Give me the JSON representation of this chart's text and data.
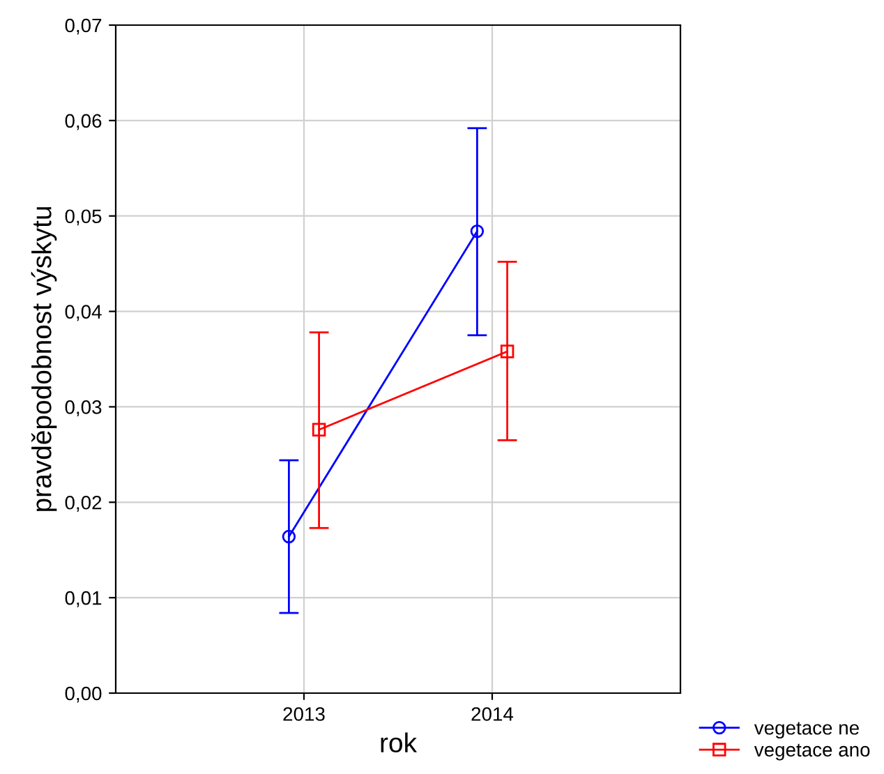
{
  "chart_data": {
    "type": "line",
    "xlabel": "rok",
    "ylabel": "pravděpodobnost výskytu",
    "categories": [
      "2013",
      "2014"
    ],
    "series": [
      {
        "name": "vegetace ne",
        "color": "#0000ff",
        "marker": "circle",
        "values": [
          0.0164,
          0.0484
        ],
        "errors": [
          [
            0.0084,
            0.0244
          ],
          [
            0.0375,
            0.0592
          ]
        ]
      },
      {
        "name": "vegetace ano",
        "color": "#ff0000",
        "marker": "square",
        "values": [
          0.0276,
          0.0358
        ],
        "errors": [
          [
            0.0173,
            0.0378
          ],
          [
            0.0265,
            0.0452
          ]
        ]
      }
    ],
    "ylim": [
      0,
      0.07
    ],
    "yticks": [
      {
        "value": 0,
        "label": "0,00"
      },
      {
        "value": 0.01,
        "label": "0,01"
      },
      {
        "value": 0.02,
        "label": "0,02"
      },
      {
        "value": 0.03,
        "label": "0,03"
      },
      {
        "value": 0.04,
        "label": "0,04"
      },
      {
        "value": 0.05,
        "label": "0,05"
      },
      {
        "value": 0.06,
        "label": "0,06"
      },
      {
        "value": 0.07,
        "label": "0,07"
      }
    ],
    "grid": true,
    "legend": "bottom right"
  }
}
